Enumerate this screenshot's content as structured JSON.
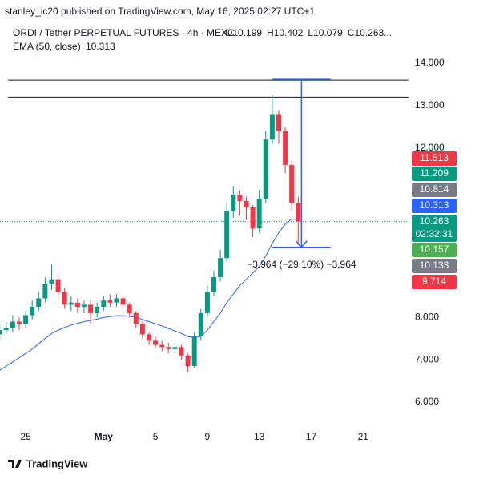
{
  "header": {
    "published": "stanley_ic20 published on TradingView.com, May 16, 2025 02:27 UTC+1",
    "footer": "TradingView"
  },
  "chart_data": {
    "type": "candlestick",
    "symbol": "ORDI / Tether PERPETUAL FUTURES · 4h · MEXC",
    "ohlc": [
      {
        "key": "O",
        "value": "10.199"
      },
      {
        "key": "H",
        "value": "10.402"
      },
      {
        "key": "L",
        "value": "10.079"
      },
      {
        "key": "C",
        "value": "10.263..."
      }
    ],
    "indicator": {
      "name": "EMA (50, close)",
      "value": "10.313",
      "color": "#2962ff"
    },
    "up_color": "#089981",
    "down_color": "#f23645",
    "x": [
      -2,
      -1.5,
      -1,
      -0.5,
      0,
      0.5,
      1,
      1.5,
      2,
      2.5,
      3,
      3.5,
      4,
      4.5,
      5,
      5.5,
      6,
      6.5,
      7,
      7.5,
      8,
      8.5,
      9,
      9.5,
      10,
      10.5,
      11,
      11.5,
      12,
      12.5,
      13,
      13.5,
      14,
      14.5,
      15,
      15.5,
      16,
      16.5,
      17,
      17.5,
      18,
      18.5,
      19,
      19.5,
      20,
      20.5,
      21
    ],
    "open": [
      7.6,
      7.7,
      7.75,
      7.9,
      7.85,
      8.05,
      8.25,
      8.45,
      8.8,
      8.9,
      8.6,
      8.3,
      8.35,
      8.25,
      8.3,
      8.1,
      8.25,
      8.4,
      8.35,
      8.45,
      8.3,
      8.1,
      7.85,
      7.6,
      7.45,
      7.35,
      7.3,
      7.25,
      7.3,
      7.1,
      6.85,
      7.55,
      8.1,
      8.6,
      8.95,
      9.4,
      10.5,
      10.9,
      10.75,
      10.6,
      10.1,
      10.8,
      12.2,
      12.8,
      12.4,
      11.6,
      10.7
    ],
    "high": [
      7.85,
      7.9,
      8.05,
      8.0,
      8.15,
      8.4,
      8.6,
      8.95,
      9.25,
      9.0,
      8.7,
      8.5,
      8.45,
      8.4,
      8.4,
      8.35,
      8.5,
      8.55,
      8.55,
      8.5,
      8.35,
      8.15,
      7.9,
      7.65,
      7.55,
      7.45,
      7.4,
      7.4,
      7.35,
      7.15,
      7.65,
      8.2,
      8.75,
      9.1,
      9.6,
      10.7,
      11.1,
      11.0,
      10.85,
      10.65,
      11.0,
      12.4,
      13.25,
      12.9,
      12.5,
      11.7,
      10.85
    ],
    "low": [
      7.45,
      7.6,
      7.65,
      7.7,
      7.75,
      7.95,
      8.15,
      8.35,
      8.65,
      8.45,
      8.2,
      8.15,
      8.1,
      8.1,
      7.85,
      8.0,
      8.15,
      8.25,
      8.25,
      8.2,
      8.0,
      7.75,
      7.5,
      7.35,
      7.25,
      7.2,
      7.15,
      7.15,
      7.0,
      6.7,
      6.8,
      7.45,
      8.0,
      8.5,
      8.85,
      9.3,
      10.35,
      10.4,
      10.3,
      9.9,
      10.0,
      10.7,
      12.1,
      12.1,
      11.4,
      10.5,
      9.714
    ],
    "close": [
      7.7,
      7.75,
      7.9,
      7.85,
      8.05,
      8.25,
      8.45,
      8.8,
      8.9,
      8.6,
      8.3,
      8.35,
      8.25,
      8.3,
      8.1,
      8.25,
      8.4,
      8.35,
      8.45,
      8.3,
      8.1,
      7.85,
      7.6,
      7.45,
      7.35,
      7.3,
      7.25,
      7.3,
      7.1,
      6.85,
      7.55,
      8.1,
      8.6,
      8.95,
      9.4,
      10.5,
      10.9,
      10.75,
      10.6,
      10.1,
      10.8,
      12.2,
      12.8,
      12.4,
      11.6,
      10.7,
      10.263
    ],
    "ema": [
      6.75,
      6.85,
      6.95,
      7.05,
      7.15,
      7.25,
      7.38,
      7.5,
      7.62,
      7.7,
      7.76,
      7.82,
      7.86,
      7.9,
      7.93,
      7.96,
      8.0,
      8.02,
      8.04,
      8.04,
      8.03,
      8.0,
      7.95,
      7.9,
      7.85,
      7.8,
      7.74,
      7.68,
      7.62,
      7.55,
      7.52,
      7.55,
      7.7,
      7.9,
      8.1,
      8.35,
      8.55,
      8.75,
      8.9,
      9.05,
      9.2,
      9.45,
      9.75,
      10.0,
      10.2,
      10.32,
      10.313
    ],
    "xlim": [
      -1.98,
      29.5
    ],
    "ylim": [
      5.47,
      14.36
    ],
    "xticks": [
      {
        "value": 0,
        "label": "25"
      },
      {
        "value": 6,
        "label": "May"
      },
      {
        "value": 10,
        "label": "5"
      },
      {
        "value": 14,
        "label": "9"
      },
      {
        "value": 18,
        "label": "13"
      },
      {
        "value": 22,
        "label": "17"
      },
      {
        "value": 26,
        "label": "21"
      }
    ],
    "yticks": [
      {
        "value": 6,
        "label": "6.000"
      },
      {
        "value": 7,
        "label": "7.000"
      },
      {
        "value": 8,
        "label": "8.000"
      },
      {
        "value": 12,
        "label": "12.000"
      },
      {
        "value": 13,
        "label": "13.000"
      },
      {
        "value": 14,
        "label": "14.000"
      }
    ],
    "hlines": [
      13.6,
      13.2
    ],
    "last_price": 10.263,
    "measure": {
      "from": 13.62,
      "to": 9.656,
      "x0": 19,
      "x1": 23.5,
      "label": "−3.964 (−29.10%) −3,964",
      "color": "#2962ff"
    },
    "price_tags": [
      {
        "value": 11.513,
        "color": "#f23645"
      },
      {
        "value": 11.209,
        "color": "#089981"
      },
      {
        "value": 10.814,
        "color": "#787b86"
      },
      {
        "value": 10.313,
        "color": "#2962ff"
      },
      {
        "value": 10.263,
        "color": "#089981",
        "countdown": "02:32:31"
      },
      {
        "value": 10.157,
        "color": "#4caf50"
      },
      {
        "value": 10.133,
        "color": "#787b86"
      },
      {
        "value": 9.714,
        "color": "#f23645"
      }
    ]
  }
}
